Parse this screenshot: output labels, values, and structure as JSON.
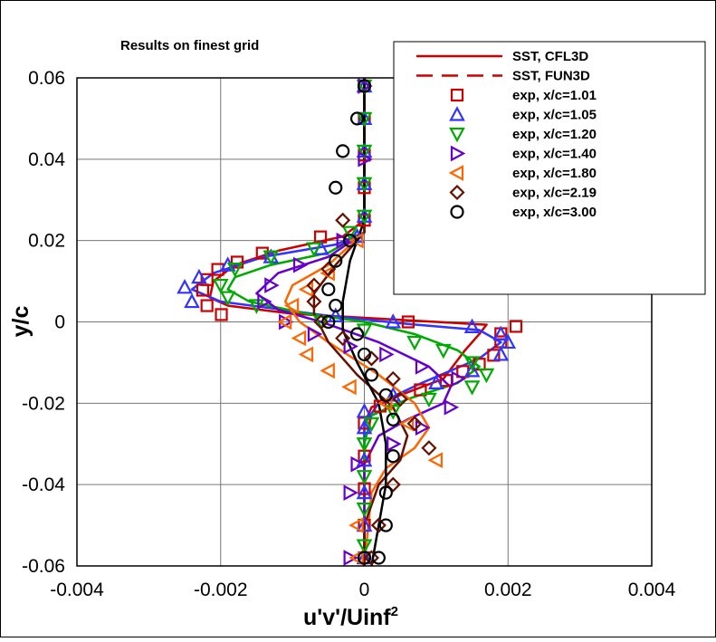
{
  "chart_data": {
    "type": "line",
    "title": "Results on finest grid",
    "xlabel": "u'v'/Uinf",
    "xlabel_superscript": "2",
    "ylabel": "y/c",
    "xlim": [
      -0.004,
      0.004
    ],
    "ylim": [
      -0.06,
      0.06
    ],
    "xticks": [
      "-0.004",
      "-0.002",
      "0",
      "0.002",
      "0.004"
    ],
    "xtick_values": [
      -0.004,
      -0.002,
      0,
      0.002,
      0.004
    ],
    "yticks": [
      "0.06",
      "0.04",
      "0.02",
      "0",
      "-0.02",
      "-0.04",
      "-0.06"
    ],
    "ytick_values": [
      0.06,
      0.04,
      0.02,
      0,
      -0.02,
      -0.04,
      -0.06
    ],
    "grid": true,
    "legend_placement": "top-right",
    "legend": [
      {
        "label": "SST, CFL3D",
        "style": "solid",
        "color": "#cc0000"
      },
      {
        "label": "SST, FUN3D",
        "style": "dashed",
        "color": "#cc0000"
      },
      {
        "label": "exp, x/c=1.01",
        "marker": "square",
        "color": "#cc0000"
      },
      {
        "label": "exp, x/c=1.05",
        "marker": "triangle-up",
        "color": "#3333ff"
      },
      {
        "label": "exp, x/c=1.20",
        "marker": "triangle-down",
        "color": "#00aa00"
      },
      {
        "label": "exp, x/c=1.40",
        "marker": "triangle-right",
        "color": "#6600cc"
      },
      {
        "label": "exp, x/c=1.80",
        "marker": "triangle-left",
        "color": "#ff6600"
      },
      {
        "label": "exp, x/c=2.19",
        "marker": "diamond",
        "color": "#661100"
      },
      {
        "label": "exp, x/c=3.00",
        "marker": "circle",
        "color": "#000000"
      }
    ],
    "series": [
      {
        "station": "1.01",
        "color": "#cc0000",
        "marker": "square",
        "sst": [
          [
            0,
            0.06
          ],
          [
            0,
            0.025
          ],
          [
            -0.0003,
            0.021
          ],
          [
            -0.0012,
            0.0175
          ],
          [
            -0.0018,
            0.014
          ],
          [
            -0.0021,
            0.01
          ],
          [
            -0.00215,
            0.006
          ],
          [
            -0.0019,
            0.004
          ],
          [
            -0.001,
            0.002
          ],
          [
            0.0005,
            0.0005
          ],
          [
            0.0017,
            -0.0007
          ],
          [
            0.0016,
            -0.003
          ],
          [
            0.0014,
            -0.007
          ],
          [
            0.0011,
            -0.014
          ],
          [
            0.0005,
            -0.018
          ],
          [
            0.0001,
            -0.021
          ],
          [
            0,
            -0.025
          ],
          [
            0,
            -0.06
          ]
        ],
        "exp": [
          [
            0,
            0.058
          ],
          [
            0,
            0.05
          ],
          [
            0,
            0.041
          ],
          [
            0,
            0.033
          ],
          [
            0,
            0.025
          ],
          [
            -0.00061,
            0.0209
          ],
          [
            -0.00142,
            0.0169
          ],
          [
            -0.00177,
            0.0147
          ],
          [
            -0.00204,
            0.0129
          ],
          [
            -0.00219,
            0.0104
          ],
          [
            -0.00225,
            0.0078
          ],
          [
            -0.00219,
            0.004
          ],
          [
            -0.00199,
            0.0018
          ],
          [
            0.00061,
            0
          ],
          [
            0.00211,
            -0.0011
          ],
          [
            0.0019,
            -0.0029
          ],
          [
            0.0019,
            -0.0049
          ],
          [
            0.0018,
            -0.0082
          ],
          [
            0.0016,
            -0.0104
          ],
          [
            0.00137,
            -0.0122
          ],
          [
            0.00114,
            -0.0144
          ],
          [
            0.00078,
            -0.0167
          ],
          [
            0.00022,
            -0.0207
          ],
          [
            0,
            -0.0249
          ],
          [
            0,
            -0.033
          ],
          [
            0,
            -0.041
          ],
          [
            0,
            -0.05
          ],
          [
            0,
            -0.058
          ]
        ]
      },
      {
        "station": "1.05",
        "color": "#3333ff",
        "marker": "triangle-up",
        "sst": [
          [
            0,
            0.06
          ],
          [
            0,
            0.022
          ],
          [
            -0.0004,
            0.019
          ],
          [
            -0.0014,
            0.016
          ],
          [
            -0.0021,
            0.012
          ],
          [
            -0.0024,
            0.008
          ],
          [
            -0.002,
            0.005
          ],
          [
            -0.0005,
            0.0015
          ],
          [
            0.0006,
            -0.0005
          ],
          [
            0.0016,
            -0.002
          ],
          [
            0.0019,
            -0.005
          ],
          [
            0.0016,
            -0.009
          ],
          [
            0.0008,
            -0.015
          ],
          [
            0.0002,
            -0.02
          ],
          [
            0,
            -0.025
          ],
          [
            0,
            -0.06
          ]
        ],
        "exp": [
          [
            0,
            0.058
          ],
          [
            0,
            0.05
          ],
          [
            0,
            0.042
          ],
          [
            0,
            0.034
          ],
          [
            0,
            0.026
          ],
          [
            -0.0001,
            0.021
          ],
          [
            -0.0006,
            0.018
          ],
          [
            -0.0013,
            0.016
          ],
          [
            -0.0019,
            0.014
          ],
          [
            -0.0023,
            0.011
          ],
          [
            -0.0025,
            0.0085
          ],
          [
            -0.0024,
            0.005
          ],
          [
            -0.0004,
            0.0015
          ],
          [
            0.0004,
            0
          ],
          [
            0.0015,
            -0.0012
          ],
          [
            0.0019,
            -0.003
          ],
          [
            0.002,
            -0.005
          ],
          [
            0.0019,
            -0.008
          ],
          [
            0.0015,
            -0.012
          ],
          [
            0.001,
            -0.015
          ],
          [
            0.0004,
            -0.018
          ],
          [
            0,
            -0.022
          ],
          [
            0,
            -0.026
          ],
          [
            0,
            -0.034
          ],
          [
            0,
            -0.042
          ],
          [
            0,
            -0.05
          ],
          [
            0,
            -0.058
          ]
        ]
      },
      {
        "station": "1.20",
        "color": "#00aa00",
        "marker": "triangle-down",
        "sst": [
          [
            0,
            0.06
          ],
          [
            0,
            0.022
          ],
          [
            -0.0005,
            0.017
          ],
          [
            -0.0013,
            0.014
          ],
          [
            -0.0018,
            0.011
          ],
          [
            -0.0019,
            0.008
          ],
          [
            -0.0016,
            0.005
          ],
          [
            -0.0008,
            0.002
          ],
          [
            0,
            0
          ],
          [
            0.0007,
            -0.003
          ],
          [
            0.0013,
            -0.007
          ],
          [
            0.0016,
            -0.011
          ],
          [
            0.0013,
            -0.015
          ],
          [
            0.0006,
            -0.019
          ],
          [
            0.0001,
            -0.023
          ],
          [
            0,
            -0.03
          ],
          [
            0,
            -0.06
          ]
        ],
        "exp": [
          [
            0,
            0.058
          ],
          [
            0,
            0.05
          ],
          [
            0,
            0.042
          ],
          [
            0,
            0.034
          ],
          [
            0,
            0.026
          ],
          [
            -0.0002,
            0.022
          ],
          [
            -0.0007,
            0.018
          ],
          [
            -0.0013,
            0.016
          ],
          [
            -0.0018,
            0.013
          ],
          [
            -0.002,
            0.009
          ],
          [
            -0.0019,
            0.006
          ],
          [
            -0.0015,
            0.004
          ],
          [
            -0.0006,
            0
          ],
          [
            0,
            -0.002
          ],
          [
            0.0007,
            -0.005
          ],
          [
            0.0011,
            -0.007
          ],
          [
            0.0015,
            -0.01
          ],
          [
            0.0017,
            -0.013
          ],
          [
            0.0015,
            -0.016
          ],
          [
            0.0009,
            -0.019
          ],
          [
            0.0004,
            -0.022
          ],
          [
            0.0001,
            -0.025
          ],
          [
            0,
            -0.03
          ],
          [
            0,
            -0.038
          ],
          [
            0,
            -0.046
          ],
          [
            0,
            -0.055
          ]
        ]
      },
      {
        "station": "1.40",
        "color": "#6600cc",
        "marker": "triangle-right",
        "sst": [
          [
            0,
            0.06
          ],
          [
            0,
            0.022
          ],
          [
            -0.0005,
            0.016
          ],
          [
            -0.0012,
            0.012
          ],
          [
            -0.0015,
            0.007
          ],
          [
            -0.0012,
            0.003
          ],
          [
            -0.0006,
            0
          ],
          [
            0.0002,
            -0.005
          ],
          [
            0.0009,
            -0.011
          ],
          [
            0.0012,
            -0.016
          ],
          [
            0.0011,
            -0.02
          ],
          [
            0.0006,
            -0.024
          ],
          [
            0.0002,
            -0.028
          ],
          [
            0,
            -0.035
          ],
          [
            0,
            -0.06
          ]
        ],
        "exp": [
          [
            0,
            0.058
          ],
          [
            0,
            0.04
          ],
          [
            -0.0003,
            0.02
          ],
          [
            -0.0009,
            0.014
          ],
          [
            -0.0013,
            0.009
          ],
          [
            -0.0014,
            0.005
          ],
          [
            -0.0011,
            0
          ],
          [
            -0.0007,
            -0.003
          ],
          [
            -0.0002,
            -0.006
          ],
          [
            0.0003,
            -0.008
          ],
          [
            0.0008,
            -0.011
          ],
          [
            0.0013,
            -0.014
          ],
          [
            0.0012,
            -0.021
          ],
          [
            0.0008,
            -0.026
          ],
          [
            0.0004,
            -0.03
          ],
          [
            -0.0001,
            -0.035
          ],
          [
            -0.0002,
            -0.042
          ],
          [
            -0.0002,
            -0.058
          ]
        ]
      },
      {
        "station": "1.80",
        "color": "#ff6600",
        "marker": "triangle-left",
        "sst": [
          [
            0,
            0.06
          ],
          [
            0,
            0.022
          ],
          [
            -0.0005,
            0.014
          ],
          [
            -0.001,
            0.009
          ],
          [
            -0.0011,
            0.005
          ],
          [
            -0.0009,
            0
          ],
          [
            -0.0005,
            -0.005
          ],
          [
            0.0002,
            -0.013
          ],
          [
            0.0007,
            -0.02
          ],
          [
            0.0009,
            -0.026
          ],
          [
            0.0007,
            -0.031
          ],
          [
            0.0003,
            -0.036
          ],
          [
            0.0001,
            -0.042
          ],
          [
            0,
            -0.06
          ]
        ],
        "exp": [
          [
            -0.0001,
            0.02
          ],
          [
            -0.0005,
            0.012
          ],
          [
            -0.0008,
            0.008
          ],
          [
            -0.001,
            0.004
          ],
          [
            -0.0011,
            0
          ],
          [
            -0.0009,
            -0.004
          ],
          [
            -0.0008,
            -0.008
          ],
          [
            -0.0005,
            -0.012
          ],
          [
            -0.0002,
            -0.016
          ],
          [
            0.0003,
            -0.02
          ],
          [
            0.0006,
            -0.025
          ],
          [
            0.001,
            -0.034
          ],
          [
            -0.0001,
            -0.05
          ],
          [
            -0.0001,
            -0.058
          ]
        ]
      },
      {
        "station": "2.19",
        "color": "#661100",
        "marker": "diamond",
        "sst": [
          [
            0,
            0.06
          ],
          [
            0,
            0.022
          ],
          [
            -0.0004,
            0.014
          ],
          [
            -0.0007,
            0.007
          ],
          [
            -0.0007,
            0.002
          ],
          [
            -0.0005,
            -0.005
          ],
          [
            -0.0001,
            -0.013
          ],
          [
            0.0004,
            -0.021
          ],
          [
            0.0006,
            -0.028
          ],
          [
            0.0005,
            -0.034
          ],
          [
            0.0002,
            -0.04
          ],
          [
            0,
            -0.05
          ],
          [
            0,
            -0.06
          ]
        ],
        "exp": [
          [
            -0.0003,
            0.025
          ],
          [
            -0.0005,
            0.013
          ],
          [
            -0.0007,
            0.009
          ],
          [
            -0.0007,
            0.005
          ],
          [
            -0.0006,
            0
          ],
          [
            -0.0003,
            -0.004
          ],
          [
            0.0001,
            -0.009
          ],
          [
            0.0004,
            -0.014
          ],
          [
            0.0005,
            -0.019
          ],
          [
            0.0007,
            -0.025
          ],
          [
            0.0009,
            -0.031
          ],
          [
            0.0004,
            -0.04
          ],
          [
            0.0002,
            -0.05
          ],
          [
            0.0001,
            -0.058
          ]
        ]
      },
      {
        "station": "3.00",
        "color": "#000000",
        "marker": "circle",
        "sst": [
          [
            0,
            0.06
          ],
          [
            0,
            0.025
          ],
          [
            -0.0002,
            0.015
          ],
          [
            -0.0003,
            0.005
          ],
          [
            -0.0003,
            -0.002
          ],
          [
            -0.0001,
            -0.01
          ],
          [
            0.0002,
            -0.02
          ],
          [
            0.0003,
            -0.03
          ],
          [
            0.0003,
            -0.04
          ],
          [
            0.0002,
            -0.05
          ],
          [
            0.0001,
            -0.06
          ]
        ],
        "exp": [
          [
            0,
            0.058
          ],
          [
            -0.0001,
            0.05
          ],
          [
            -0.0003,
            0.042
          ],
          [
            -0.0004,
            0.033
          ],
          [
            -0.0002,
            0.02
          ],
          [
            -0.0004,
            0.015
          ],
          [
            -0.0005,
            0.008
          ],
          [
            -0.0004,
            0.004
          ],
          [
            -0.0005,
            0
          ],
          [
            -0.0001,
            -0.003
          ],
          [
            0,
            -0.008
          ],
          [
            0.0001,
            -0.013
          ],
          [
            0.0003,
            -0.018
          ],
          [
            0.0004,
            -0.024
          ],
          [
            0.0004,
            -0.033
          ],
          [
            0.0003,
            -0.042
          ],
          [
            0.0003,
            -0.05
          ],
          [
            0.0002,
            -0.058
          ],
          [
            0,
            -0.058
          ]
        ]
      }
    ]
  }
}
